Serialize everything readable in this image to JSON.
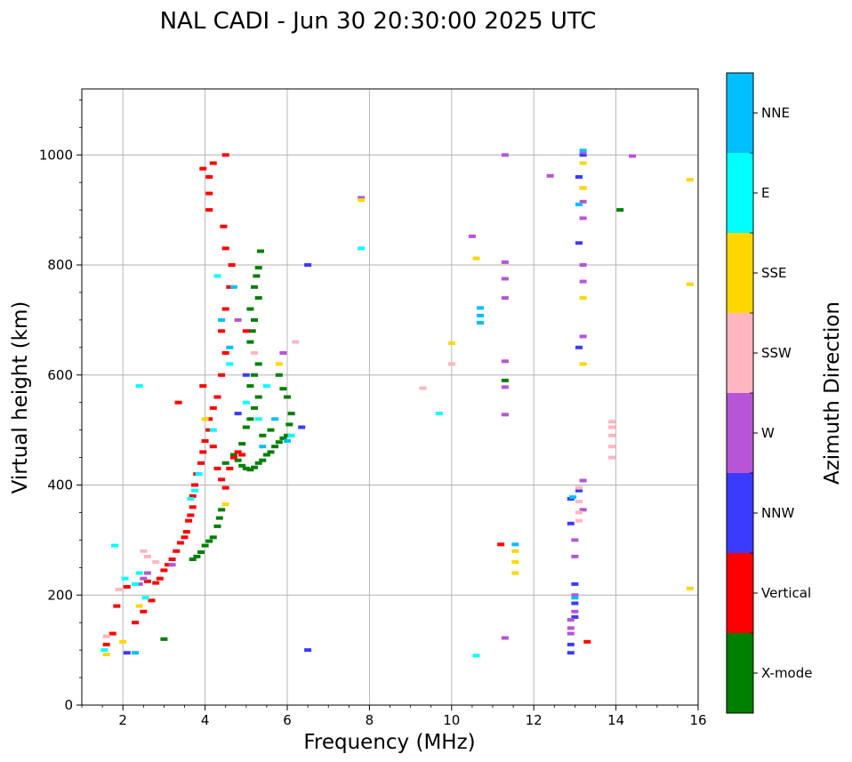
{
  "chart_data": {
    "type": "scatter",
    "title": "NAL CADI - Jun 30 20:30:00 2025 UTC",
    "xlabel": "Frequency (MHz)",
    "ylabel": "Virtual height (km)",
    "xlim": [
      1,
      16
    ],
    "ylim": [
      0,
      1120
    ],
    "grid": true,
    "x_ticks": [
      2,
      4,
      6,
      8,
      10,
      12,
      14,
      16
    ],
    "y_ticks": [
      0,
      200,
      400,
      600,
      800,
      1000
    ],
    "colorbar": {
      "label": "Azimuth Direction",
      "categories": [
        {
          "name": "X-mode",
          "color": "#008000"
        },
        {
          "name": "Vertical",
          "color": "#ff0000"
        },
        {
          "name": "NNW",
          "color": "#3b3bff"
        },
        {
          "name": "W",
          "color": "#b655d6"
        },
        {
          "name": "SSW",
          "color": "#ffb6c1"
        },
        {
          "name": "SSE",
          "color": "#ffd700"
        },
        {
          "name": "E",
          "color": "#00ffff"
        },
        {
          "name": "NNE",
          "color": "#00bfff"
        }
      ]
    },
    "series": [
      {
        "name": "X-mode",
        "points": [
          [
            3.0,
            120
          ],
          [
            3.7,
            265
          ],
          [
            3.8,
            270
          ],
          [
            3.9,
            278
          ],
          [
            4.0,
            290
          ],
          [
            4.1,
            298
          ],
          [
            4.2,
            305
          ],
          [
            4.3,
            325
          ],
          [
            4.35,
            340
          ],
          [
            4.4,
            355
          ],
          [
            4.5,
            440
          ],
          [
            4.7,
            455
          ],
          [
            4.8,
            445
          ],
          [
            4.9,
            435
          ],
          [
            5.0,
            430
          ],
          [
            5.1,
            428
          ],
          [
            5.2,
            432
          ],
          [
            5.3,
            440
          ],
          [
            5.4,
            445
          ],
          [
            5.5,
            455
          ],
          [
            5.6,
            460
          ],
          [
            5.7,
            470
          ],
          [
            5.8,
            478
          ],
          [
            5.9,
            485
          ],
          [
            6.0,
            490
          ],
          [
            6.05,
            510
          ],
          [
            6.1,
            530
          ],
          [
            6.0,
            560
          ],
          [
            5.9,
            575
          ],
          [
            5.8,
            600
          ],
          [
            5.0,
            505
          ],
          [
            5.1,
            520
          ],
          [
            5.2,
            540
          ],
          [
            5.3,
            560
          ],
          [
            5.1,
            580
          ],
          [
            5.2,
            600
          ],
          [
            5.3,
            620
          ],
          [
            5.2,
            640
          ],
          [
            5.1,
            660
          ],
          [
            5.15,
            680
          ],
          [
            5.2,
            700
          ],
          [
            5.1,
            720
          ],
          [
            5.3,
            740
          ],
          [
            5.2,
            760
          ],
          [
            5.25,
            780
          ],
          [
            5.3,
            795
          ],
          [
            5.35,
            825
          ],
          [
            4.9,
            475
          ],
          [
            5.6,
            500
          ],
          [
            5.4,
            490
          ],
          [
            11.3,
            590
          ],
          [
            14.1,
            900
          ]
        ]
      },
      {
        "name": "Vertical",
        "points": [
          [
            1.6,
            110
          ],
          [
            1.75,
            130
          ],
          [
            1.85,
            180
          ],
          [
            2.1,
            215
          ],
          [
            2.3,
            150
          ],
          [
            2.5,
            170
          ],
          [
            2.7,
            190
          ],
          [
            2.6,
            225
          ],
          [
            2.8,
            222
          ],
          [
            2.9,
            230
          ],
          [
            3.0,
            245
          ],
          [
            3.1,
            255
          ],
          [
            3.2,
            265
          ],
          [
            3.3,
            280
          ],
          [
            3.4,
            295
          ],
          [
            3.5,
            305
          ],
          [
            3.55,
            315
          ],
          [
            3.6,
            335
          ],
          [
            3.65,
            345
          ],
          [
            3.7,
            360
          ],
          [
            3.7,
            380
          ],
          [
            3.75,
            400
          ],
          [
            3.8,
            420
          ],
          [
            3.9,
            440
          ],
          [
            3.95,
            460
          ],
          [
            4.0,
            480
          ],
          [
            4.1,
            500
          ],
          [
            4.2,
            470
          ],
          [
            4.3,
            430
          ],
          [
            4.4,
            410
          ],
          [
            4.5,
            395
          ],
          [
            4.6,
            430
          ],
          [
            4.7,
            450
          ],
          [
            4.8,
            460
          ],
          [
            4.9,
            455
          ],
          [
            4.1,
            520
          ],
          [
            4.2,
            540
          ],
          [
            4.3,
            560
          ],
          [
            3.95,
            580
          ],
          [
            4.4,
            600
          ],
          [
            4.5,
            640
          ],
          [
            4.4,
            680
          ],
          [
            4.5,
            720
          ],
          [
            4.6,
            760
          ],
          [
            4.65,
            800
          ],
          [
            4.5,
            830
          ],
          [
            4.45,
            870
          ],
          [
            4.1,
            900
          ],
          [
            4.1,
            930
          ],
          [
            4.1,
            960
          ],
          [
            4.2,
            985
          ],
          [
            3.95,
            975
          ],
          [
            4.5,
            1000
          ],
          [
            3.35,
            550
          ],
          [
            5.0,
            680
          ],
          [
            11.2,
            292
          ],
          [
            13.3,
            115
          ]
        ]
      },
      {
        "name": "NNW",
        "points": [
          [
            2.1,
            95
          ],
          [
            6.5,
            100
          ],
          [
            4.8,
            530
          ],
          [
            5.0,
            600
          ],
          [
            6.35,
            505
          ],
          [
            6.5,
            800
          ],
          [
            12.9,
            95
          ],
          [
            12.9,
            110
          ],
          [
            13.0,
            160
          ],
          [
            13.0,
            185
          ],
          [
            13.0,
            220
          ],
          [
            12.9,
            330
          ],
          [
            12.9,
            375
          ],
          [
            13.1,
            390
          ],
          [
            13.1,
            650
          ],
          [
            13.1,
            840
          ],
          [
            13.1,
            960
          ],
          [
            13.2,
            1000
          ]
        ]
      },
      {
        "name": "W",
        "points": [
          [
            2.4,
            220
          ],
          [
            2.5,
            230
          ],
          [
            2.6,
            240
          ],
          [
            3.2,
            255
          ],
          [
            11.3,
            122
          ],
          [
            11.3,
            528
          ],
          [
            11.3,
            578
          ],
          [
            11.3,
            625
          ],
          [
            11.3,
            740
          ],
          [
            11.3,
            775
          ],
          [
            11.3,
            805
          ],
          [
            11.3,
            1000
          ],
          [
            12.4,
            962
          ],
          [
            12.9,
            130
          ],
          [
            12.9,
            140
          ],
          [
            12.9,
            155
          ],
          [
            13.0,
            170
          ],
          [
            13.0,
            200
          ],
          [
            13.0,
            270
          ],
          [
            13.0,
            300
          ],
          [
            13.2,
            355
          ],
          [
            13.2,
            408
          ],
          [
            13.2,
            670
          ],
          [
            13.2,
            770
          ],
          [
            13.2,
            800
          ],
          [
            13.2,
            885
          ],
          [
            13.2,
            915
          ],
          [
            13.2,
            940
          ],
          [
            13.2,
            1005
          ],
          [
            14.4,
            998
          ],
          [
            10.5,
            852
          ],
          [
            7.8,
            922
          ],
          [
            4.8,
            700
          ],
          [
            5.9,
            640
          ]
        ]
      },
      {
        "name": "SSW",
        "points": [
          [
            2.5,
            280
          ],
          [
            2.6,
            270
          ],
          [
            2.8,
            260
          ],
          [
            13.9,
            450
          ],
          [
            13.9,
            470
          ],
          [
            13.9,
            490
          ],
          [
            13.9,
            505
          ],
          [
            13.9,
            515
          ],
          [
            13.1,
            335
          ],
          [
            13.1,
            350
          ],
          [
            13.1,
            370
          ],
          [
            13.1,
            395
          ],
          [
            9.3,
            576
          ],
          [
            10.0,
            620
          ],
          [
            5.2,
            640
          ],
          [
            6.2,
            660
          ],
          [
            1.6,
            125
          ],
          [
            1.9,
            210
          ]
        ]
      },
      {
        "name": "SSE",
        "points": [
          [
            1.6,
            92
          ],
          [
            2.0,
            115
          ],
          [
            2.4,
            180
          ],
          [
            2.55,
            195
          ],
          [
            4.5,
            365
          ],
          [
            4.0,
            520
          ],
          [
            5.8,
            620
          ],
          [
            10.0,
            658
          ],
          [
            10.6,
            812
          ],
          [
            11.55,
            240
          ],
          [
            11.55,
            260
          ],
          [
            11.55,
            280
          ],
          [
            13.2,
            620
          ],
          [
            13.2,
            740
          ],
          [
            13.2,
            940
          ],
          [
            13.2,
            985
          ],
          [
            15.8,
            212
          ],
          [
            15.8,
            765
          ],
          [
            15.8,
            955
          ],
          [
            7.8,
            918
          ]
        ]
      },
      {
        "name": "E",
        "points": [
          [
            1.55,
            100
          ],
          [
            1.8,
            290
          ],
          [
            2.05,
            230
          ],
          [
            2.3,
            220
          ],
          [
            2.4,
            240
          ],
          [
            2.55,
            195
          ],
          [
            3.65,
            375
          ],
          [
            3.75,
            390
          ],
          [
            3.85,
            420
          ],
          [
            4.3,
            780
          ],
          [
            4.6,
            620
          ],
          [
            4.2,
            500
          ],
          [
            5.0,
            550
          ],
          [
            5.3,
            520
          ],
          [
            5.5,
            580
          ],
          [
            6.1,
            490
          ],
          [
            10.6,
            90
          ],
          [
            9.7,
            530
          ],
          [
            7.8,
            830
          ],
          [
            2.4,
            580
          ]
        ]
      },
      {
        "name": "NNE",
        "points": [
          [
            2.3,
            95
          ],
          [
            4.6,
            650
          ],
          [
            4.7,
            760
          ],
          [
            4.4,
            700
          ],
          [
            5.4,
            470
          ],
          [
            5.7,
            520
          ],
          [
            6.0,
            480
          ],
          [
            10.7,
            695
          ],
          [
            10.7,
            708
          ],
          [
            10.7,
            722
          ],
          [
            11.55,
            292
          ],
          [
            13.1,
            910
          ],
          [
            13.2,
            1008
          ],
          [
            13.0,
            195
          ],
          [
            12.95,
            378
          ]
        ]
      }
    ]
  }
}
